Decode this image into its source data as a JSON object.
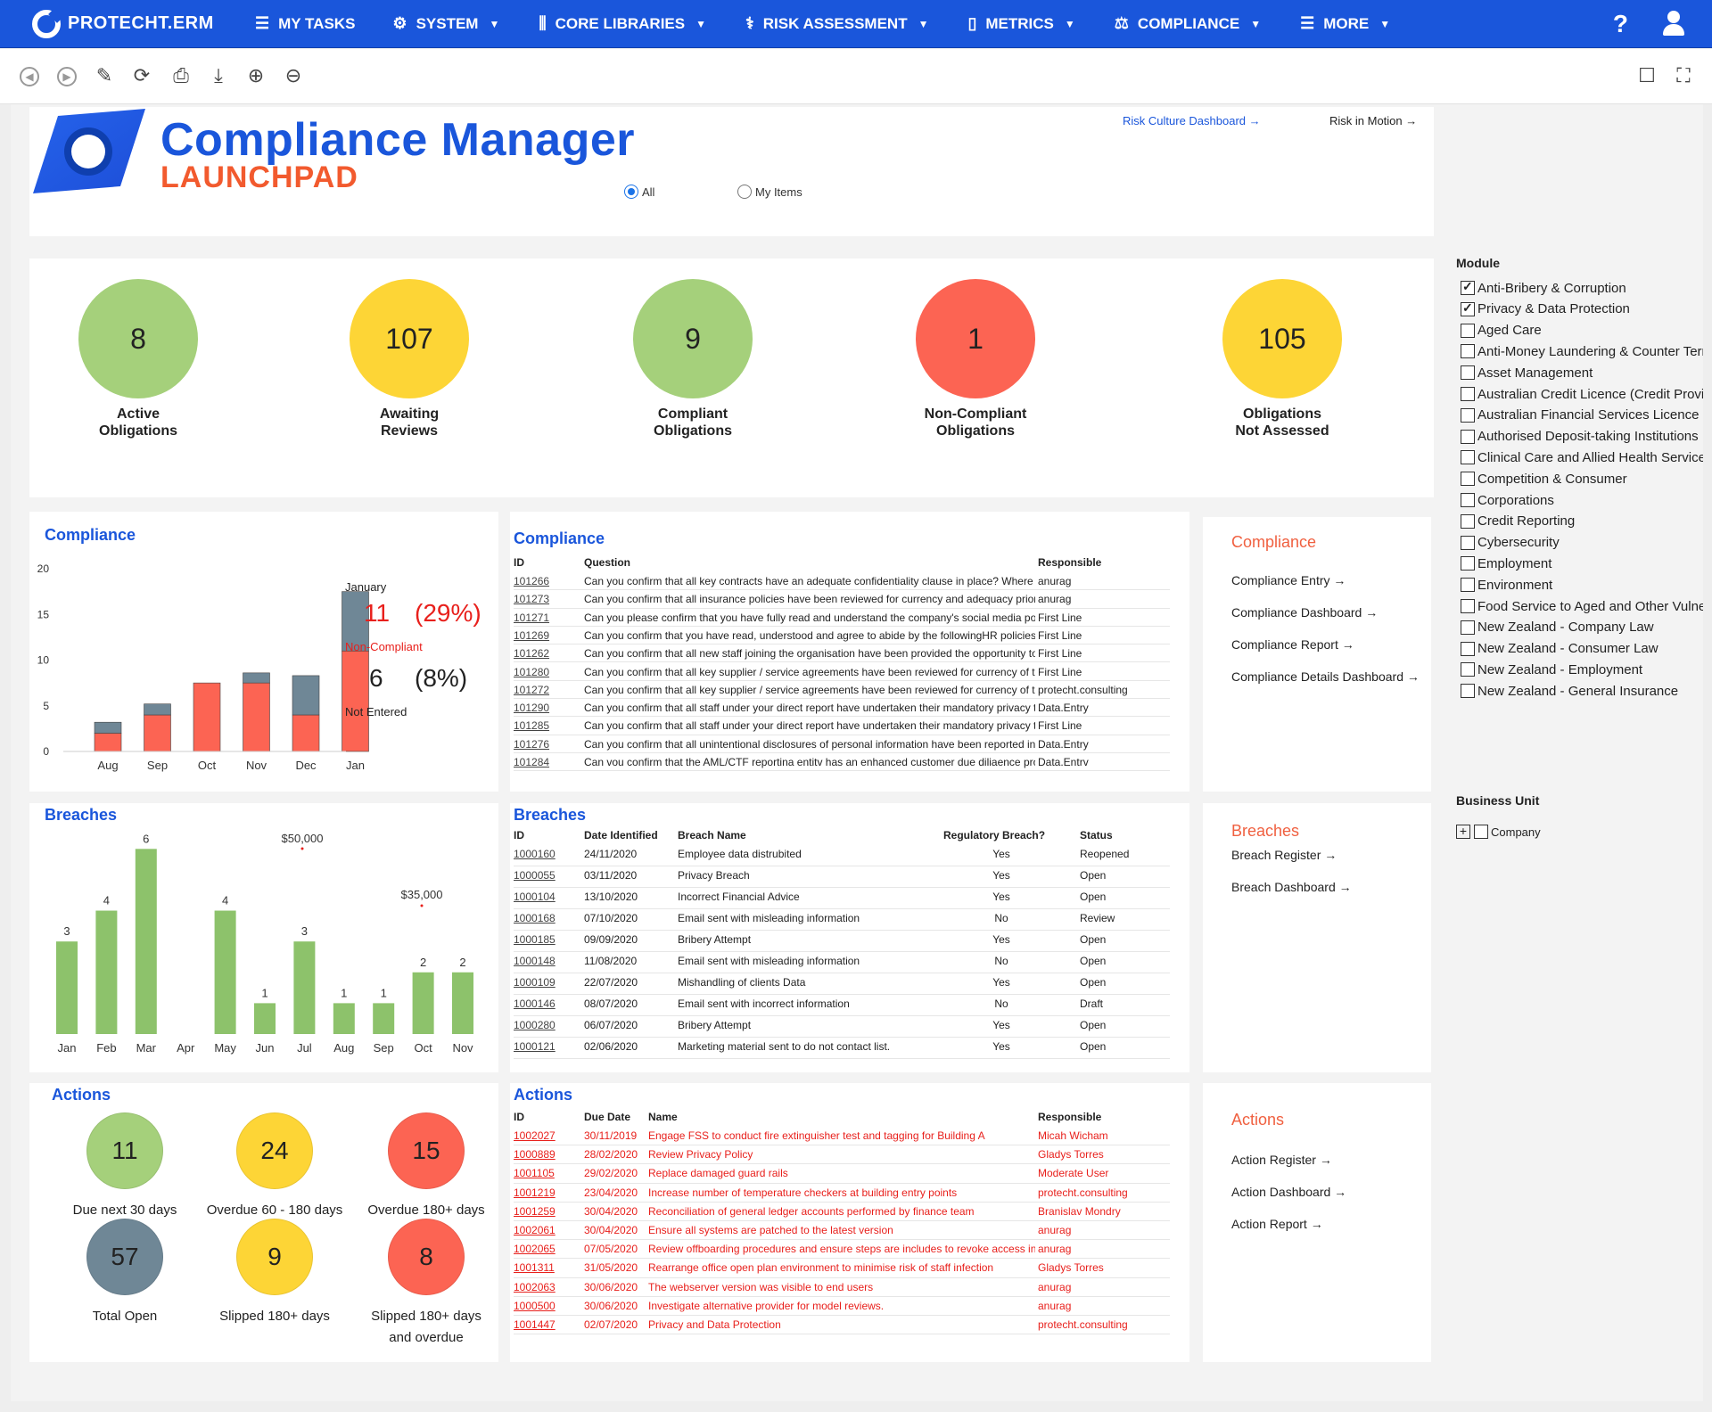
{
  "nav": {
    "brand": "PROTECHT.ERM",
    "items": [
      {
        "label": "MY TASKS",
        "icon": "list-icon",
        "glyph": "☰",
        "caret": false
      },
      {
        "label": "SYSTEM",
        "icon": "gear-icon",
        "glyph": "⚙",
        "caret": true
      },
      {
        "label": "CORE LIBRARIES",
        "icon": "library-icon",
        "glyph": "⫼",
        "caret": true
      },
      {
        "label": "RISK ASSESSMENT",
        "icon": "stethoscope-icon",
        "glyph": "⚕",
        "caret": true
      },
      {
        "label": "METRICS",
        "icon": "traffic-light-icon",
        "glyph": "▯",
        "caret": true
      },
      {
        "label": "COMPLIANCE",
        "icon": "gavel-icon",
        "glyph": "⚖",
        "caret": true
      },
      {
        "label": "MORE",
        "icon": "menu-icon",
        "glyph": "☰",
        "caret": true
      }
    ],
    "help": "?"
  },
  "header": {
    "title": "Compliance Manager",
    "subtitle": "LAUNCHPAD",
    "link_risk_culture": "Risk Culture Dashboard →",
    "link_risk_motion": "Risk in Motion →",
    "radio_all": "All",
    "radio_my": "My Items"
  },
  "kpis": [
    {
      "value": "8",
      "label1": "Active",
      "label2": "Obligations",
      "color": "#a5d07b"
    },
    {
      "value": "107",
      "label1": "Awaiting",
      "label2": "Reviews",
      "color": "#fdd536"
    },
    {
      "value": "9",
      "label1": "Compliant",
      "label2": "Obligations",
      "color": "#a5d07b"
    },
    {
      "value": "1",
      "label1": "Non-Compliant",
      "label2": "Obligations",
      "color": "#fc6453"
    },
    {
      "value": "105",
      "label1": "Obligations",
      "label2": "Not Assessed",
      "color": "#fdd536"
    }
  ],
  "compliance_chart": {
    "title": "Compliance",
    "legend_month": "January",
    "non_compliant_value": "11",
    "non_compliant_pct": "(29%)",
    "non_compliant_label": "Non-Compliant",
    "not_entered_value": "6",
    "not_entered_pct": "(8%)",
    "not_entered_label": "Not Entered"
  },
  "breaches_chart": {
    "title": "Breaches",
    "annotation1": "$50,000",
    "annotation2": "$35,000"
  },
  "chart_data": [
    {
      "type": "bar",
      "title": "Compliance",
      "categories": [
        "Aug",
        "Sep",
        "Oct",
        "Nov",
        "Dec",
        "Jan"
      ],
      "series": [
        {
          "name": "Non-Compliant",
          "values": [
            2,
            4,
            7.5,
            7.5,
            4,
            11
          ],
          "color": "#fc6453"
        },
        {
          "name": "Not Entered",
          "values": [
            1.2,
            1.2,
            0,
            1.1,
            4.3,
            6.5
          ],
          "color": "#6f8796"
        }
      ],
      "ylim": [
        0,
        20
      ],
      "yticks": [
        0,
        5,
        10,
        15,
        20
      ]
    },
    {
      "type": "bar",
      "title": "Breaches",
      "categories": [
        "Jan",
        "Feb",
        "Mar",
        "Apr",
        "May",
        "Jun",
        "Jul",
        "Aug",
        "Sep",
        "Oct",
        "Nov"
      ],
      "values": [
        3,
        4,
        6,
        0,
        4,
        1,
        3,
        1,
        1,
        2,
        2
      ],
      "color": "#8dc26b",
      "ylim": [
        0,
        6.5
      ]
    }
  ],
  "compliance_table": {
    "title": "Compliance",
    "headers": {
      "id": "ID",
      "question": "Question",
      "responsible": "Responsible"
    },
    "rows": [
      {
        "id": "101266",
        "question": "Can you confirm that all key contracts have an adequate confidentiality clause in place? Where a",
        "responsible": "anurag"
      },
      {
        "id": "101273",
        "question": "Can you confirm that all insurance policies have been reviewed for currency and adequacy prior",
        "responsible": "anurag"
      },
      {
        "id": "101271",
        "question": "Can you please confirm that you have fully read and understand the company's social media pol",
        "responsible": "First Line"
      },
      {
        "id": "101269",
        "question": "Can you confirm that you have read, understood and agree to abide by the followingHR policies",
        "responsible": "First Line"
      },
      {
        "id": "101262",
        "question": "Can you confirm that all new staff joining the organisation have been provided the opportunity to",
        "responsible": "First Line"
      },
      {
        "id": "101280",
        "question": "Can you confirm that all key supplier / service agreements have been reviewed for currency of th",
        "responsible": "First Line"
      },
      {
        "id": "101272",
        "question": "Can you confirm that all key supplier / service agreements have been reviewed for currency of th",
        "responsible": "protecht.consulting"
      },
      {
        "id": "101290",
        "question": "Can you confirm that all staff under your direct report have undertaken their mandatory privacy tr",
        "responsible": "Data.Entry"
      },
      {
        "id": "101285",
        "question": "Can you confirm that all staff under your direct report have undertaken their mandatory privacy tr",
        "responsible": "First Line"
      },
      {
        "id": "101276",
        "question": "Can you confirm that all unintentional disclosures of personal information have been reported in",
        "responsible": "Data.Entry"
      },
      {
        "id": "101284",
        "question": "Can vou confirm that the AML/CTF reportina entitv has an enhanced customer due diliaence pro",
        "responsible": "Data.Entrv"
      }
    ]
  },
  "breaches_table": {
    "title": "Breaches",
    "headers": {
      "id": "ID",
      "date": "Date Identified",
      "name": "Breach Name",
      "regulatory": "Regulatory Breach?",
      "status": "Status"
    },
    "rows": [
      {
        "id": "1000160",
        "date": "24/11/2020",
        "name": "Employee data distrubited",
        "regulatory": "Yes",
        "status": "Reopened"
      },
      {
        "id": "1000055",
        "date": "03/11/2020",
        "name": "Privacy Breach",
        "regulatory": "Yes",
        "status": "Open"
      },
      {
        "id": "1000104",
        "date": "13/10/2020",
        "name": "Incorrect Financial Advice",
        "regulatory": "Yes",
        "status": "Open"
      },
      {
        "id": "1000168",
        "date": "07/10/2020",
        "name": "Email sent with misleading information",
        "regulatory": "No",
        "status": "Review"
      },
      {
        "id": "1000185",
        "date": "09/09/2020",
        "name": "Bribery Attempt",
        "regulatory": "Yes",
        "status": "Open"
      },
      {
        "id": "1000148",
        "date": "11/08/2020",
        "name": "Email sent with misleading information",
        "regulatory": "No",
        "status": "Open"
      },
      {
        "id": "1000109",
        "date": "22/07/2020",
        "name": "Mishandling of clients Data",
        "regulatory": "Yes",
        "status": "Open"
      },
      {
        "id": "1000146",
        "date": "08/07/2020",
        "name": "Email sent with incorrect information",
        "regulatory": "No",
        "status": "Draft"
      },
      {
        "id": "1000280",
        "date": "06/07/2020",
        "name": "Bribery Attempt",
        "regulatory": "Yes",
        "status": "Open"
      },
      {
        "id": "1000121",
        "date": "02/06/2020",
        "name": "Marketing material sent to do not contact list.",
        "regulatory": "Yes",
        "status": "Open"
      }
    ]
  },
  "actions_table": {
    "title": "Actions",
    "headers": {
      "id": "ID",
      "due": "Due Date",
      "name": "Name",
      "responsible": "Responsible"
    },
    "rows": [
      {
        "id": "1002027",
        "due": "30/11/2019",
        "name": "Engage FSS to conduct fire extinguisher test and tagging for Building A",
        "responsible": "Micah Wicham"
      },
      {
        "id": "1000889",
        "due": "28/02/2020",
        "name": "Review Privacy Policy",
        "responsible": "Gladys Torres"
      },
      {
        "id": "1001105",
        "due": "29/02/2020",
        "name": "Replace damaged guard rails",
        "responsible": "Moderate User"
      },
      {
        "id": "1001219",
        "due": "23/04/2020",
        "name": "Increase number of temperature checkers at building entry points",
        "responsible": "protecht.consulting"
      },
      {
        "id": "1001259",
        "due": "30/04/2020",
        "name": "Reconciliation of general ledger accounts performed by finance team",
        "responsible": "Branislav Mondry"
      },
      {
        "id": "1002061",
        "due": "30/04/2020",
        "name": "Ensure all systems are patched to the latest version",
        "responsible": "anurag"
      },
      {
        "id": "1002065",
        "due": "07/05/2020",
        "name": "Review offboarding procedures and ensure steps are includes to revoke access in",
        "responsible": "anurag"
      },
      {
        "id": "1001311",
        "due": "31/05/2020",
        "name": "Rearrange office open plan environment to minimise risk of staff infection",
        "responsible": "Gladys Torres"
      },
      {
        "id": "1002063",
        "due": "30/06/2020",
        "name": "The webserver version was visible to end users",
        "responsible": "anurag"
      },
      {
        "id": "1000500",
        "due": "30/06/2020",
        "name": "Investigate alternative provider for model reviews.",
        "responsible": "anurag"
      },
      {
        "id": "1001447",
        "due": "02/07/2020",
        "name": "Privacy and Data Protection",
        "responsible": "protecht.consulting"
      }
    ]
  },
  "actions_circles": {
    "title": "Actions",
    "items": [
      {
        "value": "11",
        "label": "Due next 30 days",
        "label2": "",
        "color": "#a5d07b"
      },
      {
        "value": "24",
        "label": "Overdue 60 - 180 days",
        "label2": "",
        "color": "#fdd536"
      },
      {
        "value": "15",
        "label": "Overdue 180+ days",
        "label2": "",
        "color": "#fc6453"
      },
      {
        "value": "57",
        "label": "Total Open",
        "label2": "",
        "color": "#6f8796"
      },
      {
        "value": "9",
        "label": "Slipped 180+ days",
        "label2": "",
        "color": "#fdd536"
      },
      {
        "value": "8",
        "label": "Slipped 180+ days",
        "label2": "and overdue",
        "color": "#fc6453"
      }
    ]
  },
  "compliance_links": {
    "title": "Compliance",
    "links": [
      "Compliance Entry →",
      "Compliance Dashboard →",
      "Compliance Report →",
      "Compliance Details Dashboard →"
    ]
  },
  "breaches_links": {
    "title": "Breaches",
    "links": [
      "Breach Register →",
      "Breach Dashboard →"
    ]
  },
  "actions_links": {
    "title": "Actions",
    "links": [
      "Action Register →",
      "Action Dashboard →",
      "Action Report →"
    ]
  },
  "sidebar": {
    "module_title": "Module",
    "modules": [
      {
        "label": "Anti-Bribery & Corruption",
        "checked": true
      },
      {
        "label": "Privacy & Data Protection",
        "checked": true
      },
      {
        "label": "Aged Care",
        "checked": false
      },
      {
        "label": "Anti-Money Laundering & Counter Terr",
        "checked": false
      },
      {
        "label": "Asset Management",
        "checked": false
      },
      {
        "label": "Australian Credit Licence (Credit Provi",
        "checked": false
      },
      {
        "label": "Australian Financial Services Licence (",
        "checked": false
      },
      {
        "label": "Authorised Deposit-taking Institutions",
        "checked": false
      },
      {
        "label": "Clinical Care and Allied Health Service",
        "checked": false
      },
      {
        "label": "Competition & Consumer",
        "checked": false
      },
      {
        "label": "Corporations",
        "checked": false
      },
      {
        "label": "Credit Reporting",
        "checked": false
      },
      {
        "label": "Cybersecurity",
        "checked": false
      },
      {
        "label": "Employment",
        "checked": false
      },
      {
        "label": "Environment",
        "checked": false
      },
      {
        "label": "Food Service to Aged and Other Vulne",
        "checked": false
      },
      {
        "label": "New Zealand - Company Law",
        "checked": false
      },
      {
        "label": "New Zealand - Consumer Law",
        "checked": false
      },
      {
        "label": "New Zealand - Employment",
        "checked": false
      },
      {
        "label": "New Zealand - General Insurance",
        "checked": false
      }
    ],
    "bu_title": "Business Unit",
    "bu_item": "Company"
  },
  "colors": {
    "brand_blue": "#1a56db",
    "accent_orange": "#f25a2e",
    "green": "#a5d07b",
    "yellow": "#fdd536",
    "red": "#fc6453",
    "slate": "#6f8796"
  }
}
